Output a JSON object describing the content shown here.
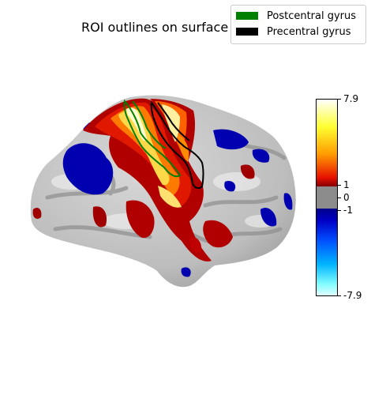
{
  "chart_data": {
    "type": "other",
    "title": "ROI outlines on surface",
    "legend": {
      "placement": "top-right",
      "entries": [
        {
          "name": "Postcentral gyrus",
          "color": "#008000"
        },
        {
          "name": "Precentral gyrus",
          "color": "#000000"
        }
      ]
    },
    "colorbar": {
      "vmin": -7.9,
      "vmax": 7.9,
      "threshold": 1,
      "tick_labels": [
        "7.9",
        "1",
        "0",
        "-1",
        "-7.9"
      ],
      "tick_values": [
        7.9,
        1,
        0,
        -1,
        -7.9
      ],
      "colormap": "cold_hot"
    }
  }
}
